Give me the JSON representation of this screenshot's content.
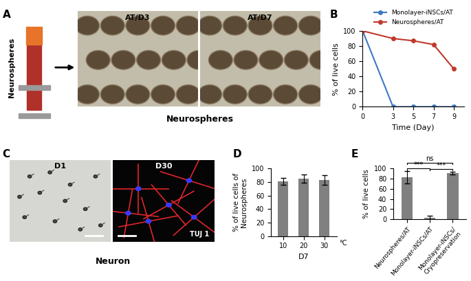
{
  "panels": {
    "A": {
      "label": "A",
      "tube_label": "Neurospheres",
      "images": [
        "AT/D3",
        "AT/D7"
      ],
      "caption": "Neurospheres"
    },
    "C": {
      "label": "C",
      "images": [
        "D1",
        "D30"
      ],
      "stain": "TUJ 1",
      "caption": "Neuron"
    }
  },
  "chart_data": [
    {
      "panel": "B",
      "type": "line",
      "xlabel": "Time (Day)",
      "ylabel": "% of live cells",
      "x": [
        0,
        3,
        5,
        7,
        9
      ],
      "xlim": [
        0,
        10
      ],
      "xticks": [
        0,
        3,
        5,
        7,
        9
      ],
      "ylim": [
        0,
        100
      ],
      "yticks": [
        0,
        20,
        40,
        60,
        80,
        100
      ],
      "legend": "above",
      "series": [
        {
          "name": "Monolayer-iNSCs/AT",
          "color": "#3c78c3",
          "marker": "circle",
          "values": [
            100,
            0,
            0,
            0,
            0
          ]
        },
        {
          "name": "Neurospheres/AT",
          "color": "#c0392b",
          "marker": "circle",
          "values": [
            100,
            90,
            87,
            82,
            50
          ]
        }
      ]
    },
    {
      "panel": "D",
      "type": "bar",
      "xlabel": "D7",
      "xunit": "°C",
      "ylabel": "% of live cells of\nNeurospheres",
      "categories": [
        "10",
        "20",
        "30"
      ],
      "values": [
        81,
        85,
        83
      ],
      "errors": [
        5,
        6,
        7
      ],
      "color": "#808080",
      "ylim": [
        0,
        100
      ],
      "yticks": [
        0,
        20,
        40,
        60,
        80,
        100
      ]
    },
    {
      "panel": "E",
      "type": "bar",
      "ylabel": "% of live cells",
      "categories": [
        "Neurospheres/AT",
        "Monolayer-iNSCs/AT",
        "Monolayer-iNSCs/\nCryopreservation"
      ],
      "values": [
        83,
        3,
        91
      ],
      "errors": [
        12,
        4,
        3
      ],
      "color": "#808080",
      "ylim": [
        0,
        100
      ],
      "yticks": [
        0,
        20,
        40,
        60,
        80,
        100
      ],
      "annotations": [
        {
          "from": 0,
          "to": 1,
          "text": "***"
        },
        {
          "from": 1,
          "to": 2,
          "text": "***"
        },
        {
          "from": 0,
          "to": 2,
          "text": "ns"
        }
      ]
    }
  ]
}
